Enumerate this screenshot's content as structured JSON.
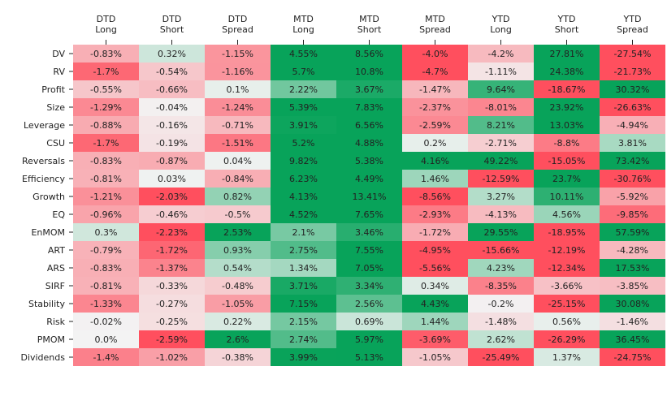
{
  "chart_data": {
    "type": "heatmap",
    "columns": [
      [
        "DTD",
        "Long"
      ],
      [
        "DTD",
        "Short"
      ],
      [
        "DTD",
        "Spread"
      ],
      [
        "MTD",
        "Long"
      ],
      [
        "MTD",
        "Short"
      ],
      [
        "MTD",
        "Spread"
      ],
      [
        "YTD",
        "Long"
      ],
      [
        "YTD",
        "Short"
      ],
      [
        "YTD",
        "Spread"
      ]
    ],
    "rows": [
      "DV",
      "RV",
      "Profit",
      "Size",
      "Leverage",
      "CSU",
      "Reversals",
      "Efficiency",
      "Growth",
      "EQ",
      "EnMOM",
      "ART",
      "ARS",
      "SIRF",
      "Stability",
      "Risk",
      "PMOM",
      "Dividends"
    ],
    "values": [
      [
        -0.83,
        0.32,
        -1.15,
        4.55,
        8.56,
        -4.0,
        -4.2,
        27.81,
        -27.54
      ],
      [
        -1.7,
        -0.54,
        -1.16,
        5.7,
        10.8,
        -4.7,
        -1.11,
        24.38,
        -21.73
      ],
      [
        -0.55,
        -0.66,
        0.1,
        2.22,
        3.67,
        -1.47,
        9.64,
        -18.67,
        30.32
      ],
      [
        -1.29,
        -0.04,
        -1.24,
        5.39,
        7.83,
        -2.37,
        -8.01,
        23.92,
        -26.63
      ],
      [
        -0.88,
        -0.16,
        -0.71,
        3.91,
        6.56,
        -2.59,
        8.21,
        13.03,
        -4.94
      ],
      [
        -1.7,
        -0.19,
        -1.51,
        5.2,
        4.88,
        0.2,
        -2.71,
        -8.8,
        3.81
      ],
      [
        -0.83,
        -0.87,
        0.04,
        9.82,
        5.38,
        4.16,
        49.22,
        -15.05,
        73.42
      ],
      [
        -0.81,
        0.03,
        -0.84,
        6.23,
        4.49,
        1.46,
        -12.59,
        23.7,
        -30.76
      ],
      [
        -1.21,
        -2.03,
        0.82,
        4.13,
        13.41,
        -8.56,
        3.27,
        10.11,
        -5.92
      ],
      [
        -0.96,
        -0.46,
        -0.5,
        4.52,
        7.65,
        -2.93,
        -4.13,
        4.56,
        -9.85
      ],
      [
        0.3,
        -2.23,
        2.53,
        2.1,
        3.46,
        -1.72,
        29.55,
        -18.95,
        57.59
      ],
      [
        -0.79,
        -1.72,
        0.93,
        2.75,
        7.55,
        -4.95,
        -15.66,
        -12.19,
        -4.28
      ],
      [
        -0.83,
        -1.37,
        0.54,
        1.34,
        7.05,
        -5.56,
        4.23,
        -12.34,
        17.53
      ],
      [
        -0.81,
        -0.33,
        -0.48,
        3.71,
        3.34,
        0.34,
        -8.35,
        -3.66,
        -3.85
      ],
      [
        -1.33,
        -0.27,
        -1.05,
        7.15,
        2.56,
        4.43,
        -0.2,
        -25.15,
        30.08
      ],
      [
        -0.02,
        -0.25,
        0.22,
        2.15,
        0.69,
        1.44,
        -1.48,
        0.56,
        -1.46
      ],
      [
        0.0,
        -2.59,
        2.6,
        2.74,
        5.97,
        -3.69,
        2.62,
        -26.29,
        36.45
      ],
      [
        -1.4,
        -1.02,
        -0.38,
        3.99,
        5.13,
        -1.05,
        -25.49,
        1.37,
        -24.75
      ]
    ],
    "labels": [
      [
        "-0.83%",
        "0.32%",
        "-1.15%",
        "4.55%",
        "8.56%",
        "-4.0%",
        "-4.2%",
        "27.81%",
        "-27.54%"
      ],
      [
        "-1.7%",
        "-0.54%",
        "-1.16%",
        "5.7%",
        "10.8%",
        "-4.7%",
        "-1.11%",
        "24.38%",
        "-21.73%"
      ],
      [
        "-0.55%",
        "-0.66%",
        "0.1%",
        "2.22%",
        "3.67%",
        "-1.47%",
        "9.64%",
        "-18.67%",
        "30.32%"
      ],
      [
        "-1.29%",
        "-0.04%",
        "-1.24%",
        "5.39%",
        "7.83%",
        "-2.37%",
        "-8.01%",
        "23.92%",
        "-26.63%"
      ],
      [
        "-0.88%",
        "-0.16%",
        "-0.71%",
        "3.91%",
        "6.56%",
        "-2.59%",
        "8.21%",
        "13.03%",
        "-4.94%"
      ],
      [
        "-1.7%",
        "-0.19%",
        "-1.51%",
        "5.2%",
        "4.88%",
        "0.2%",
        "-2.71%",
        "-8.8%",
        "3.81%"
      ],
      [
        "-0.83%",
        "-0.87%",
        "0.04%",
        "9.82%",
        "5.38%",
        "4.16%",
        "49.22%",
        "-15.05%",
        "73.42%"
      ],
      [
        "-0.81%",
        "0.03%",
        "-0.84%",
        "6.23%",
        "4.49%",
        "1.46%",
        "-12.59%",
        "23.7%",
        "-30.76%"
      ],
      [
        "-1.21%",
        "-2.03%",
        "0.82%",
        "4.13%",
        "13.41%",
        "-8.56%",
        "3.27%",
        "10.11%",
        "-5.92%"
      ],
      [
        "-0.96%",
        "-0.46%",
        "-0.5%",
        "4.52%",
        "7.65%",
        "-2.93%",
        "-4.13%",
        "4.56%",
        "-9.85%"
      ],
      [
        "0.3%",
        "-2.23%",
        "2.53%",
        "2.1%",
        "3.46%",
        "-1.72%",
        "29.55%",
        "-18.95%",
        "57.59%"
      ],
      [
        "-0.79%",
        "-1.72%",
        "0.93%",
        "2.75%",
        "7.55%",
        "-4.95%",
        "-15.66%",
        "-12.19%",
        "-4.28%"
      ],
      [
        "-0.83%",
        "-1.37%",
        "0.54%",
        "1.34%",
        "7.05%",
        "-5.56%",
        "4.23%",
        "-12.34%",
        "17.53%"
      ],
      [
        "-0.81%",
        "-0.33%",
        "-0.48%",
        "3.71%",
        "3.34%",
        "0.34%",
        "-8.35%",
        "-3.66%",
        "-3.85%"
      ],
      [
        "-1.33%",
        "-0.27%",
        "-1.05%",
        "7.15%",
        "2.56%",
        "4.43%",
        "-0.2%",
        "-25.15%",
        "30.08%"
      ],
      [
        "-0.02%",
        "-0.25%",
        "0.22%",
        "2.15%",
        "0.69%",
        "1.44%",
        "-1.48%",
        "0.56%",
        "-1.46%"
      ],
      [
        "0.0%",
        "-2.59%",
        "2.6%",
        "2.74%",
        "5.97%",
        "-3.69%",
        "2.62%",
        "-26.29%",
        "36.45%"
      ],
      [
        "-1.4%",
        "-1.02%",
        "-0.38%",
        "3.99%",
        "5.13%",
        "-1.05%",
        "-25.49%",
        "1.37%",
        "-24.75%"
      ]
    ],
    "color_scale": {
      "negative": "#ff4f5e",
      "neutral": "#f3f3f3",
      "positive": "#08a35a",
      "saturation_by_group": [
        2,
        2,
        2,
        4,
        4,
        4,
        12,
        12,
        12
      ]
    },
    "title": "",
    "xlabel": "",
    "ylabel": "",
    "x_ticks_position": "top",
    "grid": false,
    "legend": "none"
  }
}
